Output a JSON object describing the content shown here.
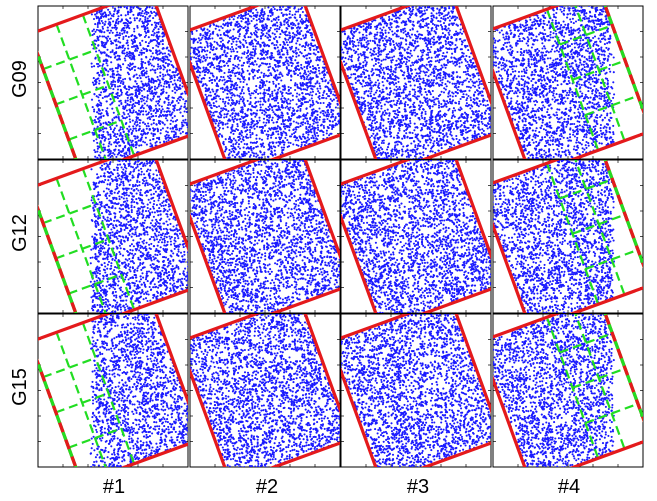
{
  "chart_data": {
    "type": "scatter",
    "title": "",
    "rows": [
      "G09",
      "G12",
      "G15"
    ],
    "columns": [
      "#1",
      "#2",
      "#3",
      "#4"
    ],
    "xlabel": "",
    "ylabel": "",
    "colors": {
      "points": "#1a1aff",
      "frame": "#e41a1c",
      "dashed_frame": "#e41a1c",
      "dash_accent": "#22dd22",
      "grid_lines": "#22dd22",
      "axes": "#000000"
    },
    "panels": [
      {
        "row": "G09",
        "col": "#1",
        "points": 2600,
        "rect_angle_deg": -20,
        "edge_cut": "left",
        "dashed_grid": "left"
      },
      {
        "row": "G09",
        "col": "#2",
        "points": 2600,
        "rect_angle_deg": -20,
        "edge_cut": "none",
        "dashed_grid": "none"
      },
      {
        "row": "G09",
        "col": "#3",
        "points": 2600,
        "rect_angle_deg": -20,
        "edge_cut": "none",
        "dashed_grid": "none"
      },
      {
        "row": "G09",
        "col": "#4",
        "points": 2600,
        "rect_angle_deg": -20,
        "edge_cut": "right",
        "dashed_grid": "right"
      },
      {
        "row": "G12",
        "col": "#1",
        "points": 2600,
        "rect_angle_deg": -20,
        "edge_cut": "left",
        "dashed_grid": "left"
      },
      {
        "row": "G12",
        "col": "#2",
        "points": 2600,
        "rect_angle_deg": -20,
        "edge_cut": "none",
        "dashed_grid": "none"
      },
      {
        "row": "G12",
        "col": "#3",
        "points": 2600,
        "rect_angle_deg": -20,
        "edge_cut": "none",
        "dashed_grid": "none"
      },
      {
        "row": "G12",
        "col": "#4",
        "points": 2600,
        "rect_angle_deg": -20,
        "edge_cut": "right",
        "dashed_grid": "right"
      },
      {
        "row": "G15",
        "col": "#1",
        "points": 2600,
        "rect_angle_deg": -20,
        "edge_cut": "left",
        "dashed_grid": "left"
      },
      {
        "row": "G15",
        "col": "#2",
        "points": 2600,
        "rect_angle_deg": -20,
        "edge_cut": "none",
        "dashed_grid": "none"
      },
      {
        "row": "G15",
        "col": "#3",
        "points": 2600,
        "rect_angle_deg": -20,
        "edge_cut": "none",
        "dashed_grid": "none"
      },
      {
        "row": "G15",
        "col": "#4",
        "points": 2600,
        "rect_angle_deg": -20,
        "edge_cut": "right",
        "dashed_grid": "right"
      }
    ]
  }
}
